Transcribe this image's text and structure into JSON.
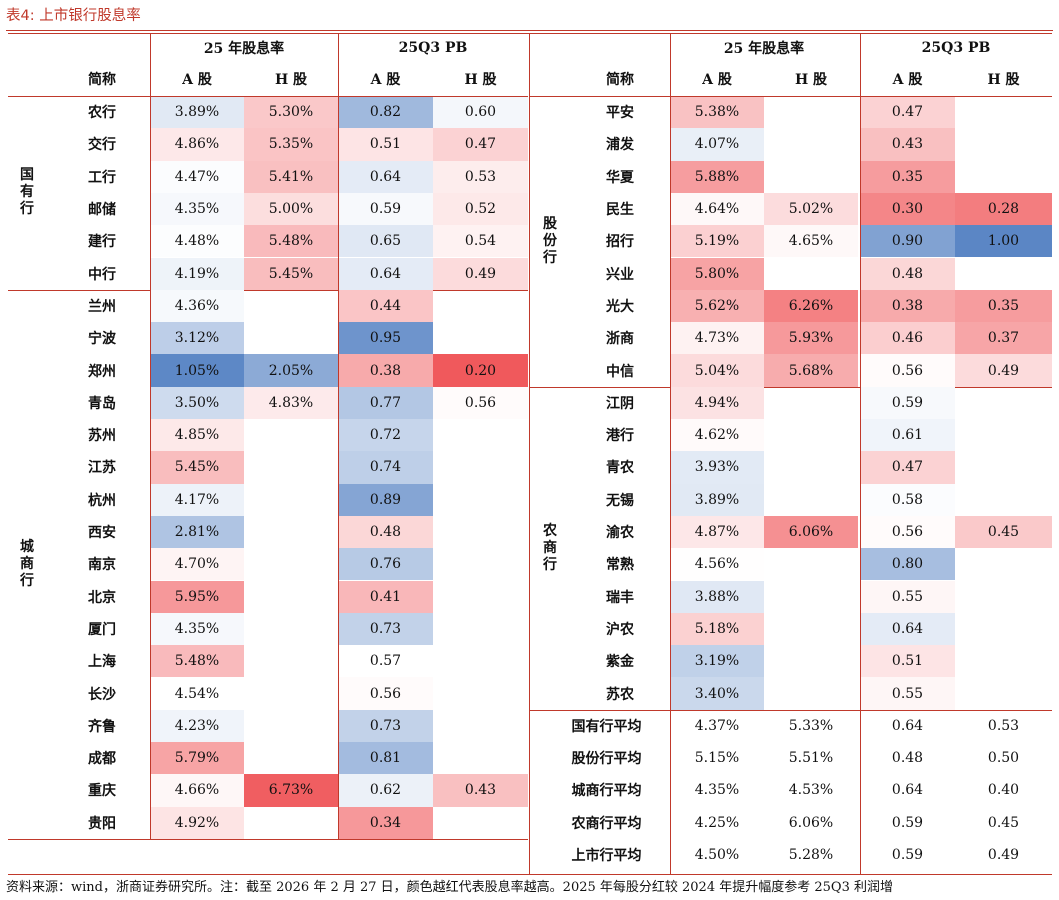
{
  "title": "表4:  上市银行股息率",
  "headers": {
    "div_yield": "25 年股息率",
    "pb": "25Q3 PB",
    "name": "简称",
    "a": "A 股",
    "h": "H 股"
  },
  "left_groups": [
    {
      "label": "国有行",
      "rows": [
        {
          "name": "农行",
          "a_div": "3.89%",
          "h_div": "5.30%",
          "a_pb": "0.82",
          "h_pb": "0.60"
        },
        {
          "name": "交行",
          "a_div": "4.86%",
          "h_div": "5.35%",
          "a_pb": "0.51",
          "h_pb": "0.47"
        },
        {
          "name": "工行",
          "a_div": "4.47%",
          "h_div": "5.41%",
          "a_pb": "0.64",
          "h_pb": "0.53"
        },
        {
          "name": "邮储",
          "a_div": "4.35%",
          "h_div": "5.00%",
          "a_pb": "0.59",
          "h_pb": "0.52"
        },
        {
          "name": "建行",
          "a_div": "4.48%",
          "h_div": "5.48%",
          "a_pb": "0.65",
          "h_pb": "0.54"
        },
        {
          "name": "中行",
          "a_div": "4.19%",
          "h_div": "5.45%",
          "a_pb": "0.64",
          "h_pb": "0.49"
        }
      ]
    },
    {
      "label": "城商行",
      "rows": [
        {
          "name": "兰州",
          "a_div": "4.36%",
          "h_div": "",
          "a_pb": "0.44",
          "h_pb": ""
        },
        {
          "name": "宁波",
          "a_div": "3.12%",
          "h_div": "",
          "a_pb": "0.95",
          "h_pb": ""
        },
        {
          "name": "郑州",
          "a_div": "1.05%",
          "h_div": "2.05%",
          "a_pb": "0.38",
          "h_pb": "0.20"
        },
        {
          "name": "青岛",
          "a_div": "3.50%",
          "h_div": "4.83%",
          "a_pb": "0.77",
          "h_pb": "0.56"
        },
        {
          "name": "苏州",
          "a_div": "4.85%",
          "h_div": "",
          "a_pb": "0.72",
          "h_pb": ""
        },
        {
          "name": "江苏",
          "a_div": "5.45%",
          "h_div": "",
          "a_pb": "0.74",
          "h_pb": ""
        },
        {
          "name": "杭州",
          "a_div": "4.17%",
          "h_div": "",
          "a_pb": "0.89",
          "h_pb": ""
        },
        {
          "name": "西安",
          "a_div": "2.81%",
          "h_div": "",
          "a_pb": "0.48",
          "h_pb": ""
        },
        {
          "name": "南京",
          "a_div": "4.70%",
          "h_div": "",
          "a_pb": "0.76",
          "h_pb": ""
        },
        {
          "name": "北京",
          "a_div": "5.95%",
          "h_div": "",
          "a_pb": "0.41",
          "h_pb": ""
        },
        {
          "name": "厦门",
          "a_div": "4.35%",
          "h_div": "",
          "a_pb": "0.73",
          "h_pb": ""
        },
        {
          "name": "上海",
          "a_div": "5.48%",
          "h_div": "",
          "a_pb": "0.57",
          "h_pb": ""
        },
        {
          "name": "长沙",
          "a_div": "4.54%",
          "h_div": "",
          "a_pb": "0.56",
          "h_pb": ""
        },
        {
          "name": "齐鲁",
          "a_div": "4.23%",
          "h_div": "",
          "a_pb": "0.73",
          "h_pb": ""
        },
        {
          "name": "成都",
          "a_div": "5.79%",
          "h_div": "",
          "a_pb": "0.81",
          "h_pb": ""
        },
        {
          "name": "重庆",
          "a_div": "4.66%",
          "h_div": "6.73%",
          "a_pb": "0.62",
          "h_pb": "0.43"
        },
        {
          "name": "贵阳",
          "a_div": "4.92%",
          "h_div": "",
          "a_pb": "0.34",
          "h_pb": ""
        }
      ]
    }
  ],
  "right_groups": [
    {
      "label": "股份行",
      "rows": [
        {
          "name": "平安",
          "a_div": "5.38%",
          "h_div": "",
          "a_pb": "0.47",
          "h_pb": ""
        },
        {
          "name": "浦发",
          "a_div": "4.07%",
          "h_div": "",
          "a_pb": "0.43",
          "h_pb": ""
        },
        {
          "name": "华夏",
          "a_div": "5.88%",
          "h_div": "",
          "a_pb": "0.35",
          "h_pb": ""
        },
        {
          "name": "民生",
          "a_div": "4.64%",
          "h_div": "5.02%",
          "a_pb": "0.30",
          "h_pb": "0.28"
        },
        {
          "name": "招行",
          "a_div": "5.19%",
          "h_div": "4.65%",
          "a_pb": "0.90",
          "h_pb": "1.00"
        },
        {
          "name": "兴业",
          "a_div": "5.80%",
          "h_div": "",
          "a_pb": "0.48",
          "h_pb": ""
        },
        {
          "name": "光大",
          "a_div": "5.62%",
          "h_div": "6.26%",
          "a_pb": "0.38",
          "h_pb": "0.35"
        },
        {
          "name": "浙商",
          "a_div": "4.73%",
          "h_div": "5.93%",
          "a_pb": "0.46",
          "h_pb": "0.37"
        },
        {
          "name": "中信",
          "a_div": "5.04%",
          "h_div": "5.68%",
          "a_pb": "0.56",
          "h_pb": "0.49"
        }
      ]
    },
    {
      "label": "农商行",
      "rows": [
        {
          "name": "江阴",
          "a_div": "4.94%",
          "h_div": "",
          "a_pb": "0.59",
          "h_pb": ""
        },
        {
          "name": "港行",
          "a_div": "4.62%",
          "h_div": "",
          "a_pb": "0.61",
          "h_pb": ""
        },
        {
          "name": "青农",
          "a_div": "3.93%",
          "h_div": "",
          "a_pb": "0.47",
          "h_pb": ""
        },
        {
          "name": "无锡",
          "a_div": "3.89%",
          "h_div": "",
          "a_pb": "0.58",
          "h_pb": ""
        },
        {
          "name": "渝农",
          "a_div": "4.87%",
          "h_div": "6.06%",
          "a_pb": "0.56",
          "h_pb": "0.45"
        },
        {
          "name": "常熟",
          "a_div": "4.56%",
          "h_div": "",
          "a_pb": "0.80",
          "h_pb": ""
        },
        {
          "name": "瑞丰",
          "a_div": "3.88%",
          "h_div": "",
          "a_pb": "0.55",
          "h_pb": ""
        },
        {
          "name": "沪农",
          "a_div": "5.18%",
          "h_div": "",
          "a_pb": "0.64",
          "h_pb": ""
        },
        {
          "name": "紫金",
          "a_div": "3.19%",
          "h_div": "",
          "a_pb": "0.51",
          "h_pb": ""
        },
        {
          "name": "苏农",
          "a_div": "3.40%",
          "h_div": "",
          "a_pb": "0.55",
          "h_pb": ""
        }
      ]
    }
  ],
  "averages": [
    {
      "name": "国有行平均",
      "a_div": "4.37%",
      "h_div": "5.33%",
      "a_pb": "0.64",
      "h_pb": "0.53"
    },
    {
      "name": "股份行平均",
      "a_div": "5.15%",
      "h_div": "5.51%",
      "a_pb": "0.48",
      "h_pb": "0.50"
    },
    {
      "name": "城商行平均",
      "a_div": "4.35%",
      "h_div": "4.53%",
      "a_pb": "0.64",
      "h_pb": "0.40"
    },
    {
      "name": "农商行平均",
      "a_div": "4.25%",
      "h_div": "6.06%",
      "a_pb": "0.59",
      "h_pb": "0.45"
    },
    {
      "name": "上市行平均",
      "a_div": "4.50%",
      "h_div": "5.28%",
      "a_pb": "0.59",
      "h_pb": "0.49"
    }
  ],
  "color_scale": {
    "low": "#5b86c5",
    "mid": "#ffffff",
    "high": "#f0595c"
  },
  "footnote": "资料来源：wind，浙商证券研究所。注：截至 2026 年 2 月 27 日，颜色越红代表股息率越高。2025 年每股分红较 2024 年提升幅度参考 25Q3 利润增"
}
